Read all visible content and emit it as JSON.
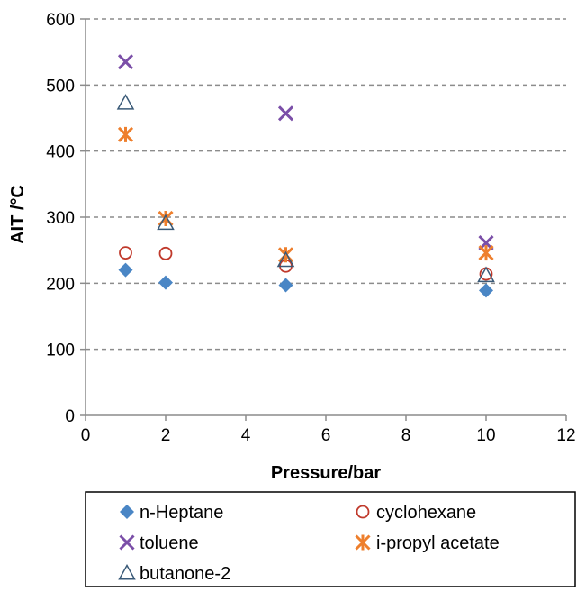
{
  "chart_data": {
    "type": "scatter",
    "title": "",
    "xlabel": "Pressure/bar",
    "ylabel": "AIT /°C",
    "xlim": [
      0,
      12
    ],
    "ylim": [
      0,
      600
    ],
    "x_ticks": [
      0,
      2,
      4,
      6,
      8,
      10,
      12
    ],
    "y_ticks": [
      0,
      100,
      200,
      300,
      400,
      500,
      600
    ],
    "grid": "horizontal dashed",
    "legend_position": "bottom",
    "series": [
      {
        "name": "n-Heptane",
        "marker": "diamond",
        "color": "#4a86c5",
        "points": [
          [
            1,
            220
          ],
          [
            2,
            201
          ],
          [
            5,
            197
          ],
          [
            10,
            189
          ]
        ]
      },
      {
        "name": "cyclohexane",
        "marker": "circle",
        "color": "#c0392b",
        "points": [
          [
            1,
            246
          ],
          [
            2,
            245
          ],
          [
            5,
            226
          ],
          [
            10,
            214
          ]
        ]
      },
      {
        "name": "toluene",
        "marker": "x",
        "color": "#7b4fa8",
        "points": [
          [
            1,
            535
          ],
          [
            5,
            457
          ],
          [
            10,
            261
          ]
        ]
      },
      {
        "name": "i-propyl acetate",
        "marker": "asterisk",
        "color": "#ee7f2d",
        "points": [
          [
            1,
            425
          ],
          [
            2,
            298
          ],
          [
            5,
            243
          ],
          [
            10,
            246
          ]
        ]
      },
      {
        "name": "butanone-2",
        "marker": "triangle",
        "color": "#3a5a78",
        "points": [
          [
            1,
            473
          ],
          [
            2,
            291
          ],
          [
            5,
            235
          ],
          [
            10,
            212
          ]
        ]
      }
    ]
  }
}
